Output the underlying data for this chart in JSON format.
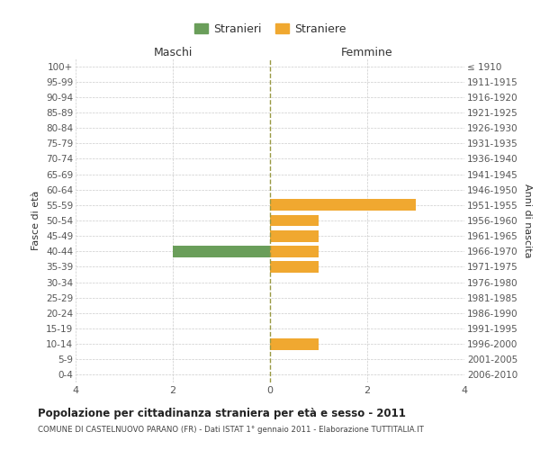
{
  "age_groups": [
    "100+",
    "95-99",
    "90-94",
    "85-89",
    "80-84",
    "75-79",
    "70-74",
    "65-69",
    "60-64",
    "55-59",
    "50-54",
    "45-49",
    "40-44",
    "35-39",
    "30-34",
    "25-29",
    "20-24",
    "15-19",
    "10-14",
    "5-9",
    "0-4"
  ],
  "birth_years": [
    "≤ 1910",
    "1911-1915",
    "1916-1920",
    "1921-1925",
    "1926-1930",
    "1931-1935",
    "1936-1940",
    "1941-1945",
    "1946-1950",
    "1951-1955",
    "1956-1960",
    "1961-1965",
    "1966-1970",
    "1971-1975",
    "1976-1980",
    "1981-1985",
    "1986-1990",
    "1991-1995",
    "1996-2000",
    "2001-2005",
    "2006-2010"
  ],
  "males": [
    0,
    0,
    0,
    0,
    0,
    0,
    0,
    0,
    0,
    0,
    0,
    0,
    2,
    0,
    0,
    0,
    0,
    0,
    0,
    0,
    0
  ],
  "females": [
    0,
    0,
    0,
    0,
    0,
    0,
    0,
    0,
    0,
    3,
    1,
    1,
    1,
    1,
    0,
    0,
    0,
    0,
    1,
    0,
    0
  ],
  "male_color": "#6a9e5a",
  "female_color": "#f0a830",
  "xlim": 4,
  "title": "Popolazione per cittadinanza straniera per età e sesso - 2011",
  "subtitle": "COMUNE DI CASTELNUOVO PARANO (FR) - Dati ISTAT 1° gennaio 2011 - Elaborazione TUTTITALIA.IT",
  "xlabel_left": "Maschi",
  "xlabel_right": "Femmine",
  "ylabel_left": "Fasce di età",
  "ylabel_right": "Anni di nascita",
  "legend_male": "Stranieri",
  "legend_female": "Straniere",
  "grid_color": "#cccccc",
  "bar_height": 0.75
}
